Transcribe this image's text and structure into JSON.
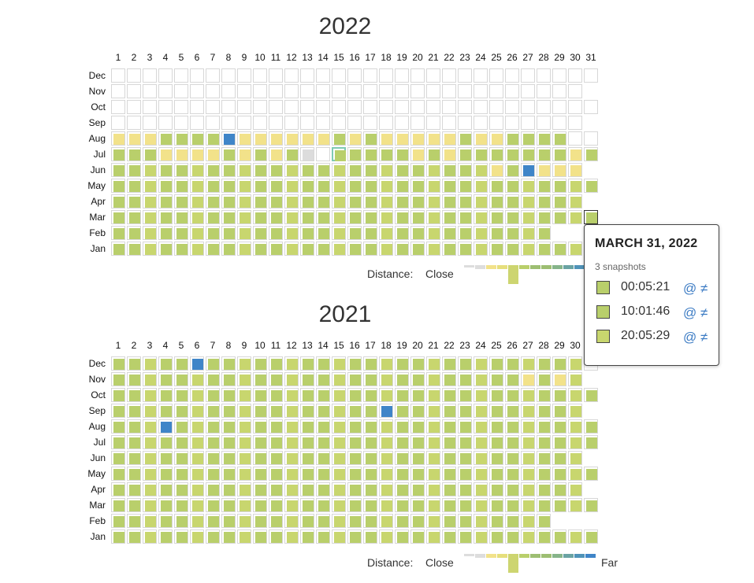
{
  "calendars": [
    {
      "year": "2022",
      "months": [
        "Dec",
        "Nov",
        "Oct",
        "Sep",
        "Aug",
        "Jul",
        "Jun",
        "May",
        "Apr",
        "Mar",
        "Feb",
        "Jan"
      ],
      "days": [
        "1",
        "2",
        "3",
        "4",
        "5",
        "6",
        "7",
        "8",
        "9",
        "10",
        "11",
        "12",
        "13",
        "14",
        "15",
        "16",
        "17",
        "18",
        "19",
        "20",
        "21",
        "22",
        "23",
        "24",
        "25",
        "26",
        "27",
        "28",
        "29",
        "30",
        "31"
      ]
    },
    {
      "year": "2021",
      "months": [
        "Dec",
        "Nov",
        "Oct",
        "Sep",
        "Aug",
        "Jul",
        "Jun",
        "May",
        "Apr",
        "Mar",
        "Feb",
        "Jan"
      ],
      "days": [
        "1",
        "2",
        "3",
        "4",
        "5",
        "6",
        "7",
        "8",
        "9",
        "10",
        "11",
        "12",
        "13",
        "14",
        "15",
        "16",
        "17",
        "18",
        "19",
        "20",
        "21",
        "22",
        "23",
        "24",
        "25",
        "26",
        "27",
        "28",
        "29",
        "30",
        "31"
      ]
    }
  ],
  "legend": {
    "distance_label": "Distance:",
    "close_label": "Close",
    "far_label": "Far"
  },
  "tooltip": {
    "date": "MARCH 31, 2022",
    "count": "3 snapshots",
    "snapshots": [
      {
        "time": "00:05:21",
        "links": "@ ≠"
      },
      {
        "time": "10:01:46",
        "links": "@ ≠"
      },
      {
        "time": "20:05:29",
        "links": "@ ≠"
      }
    ]
  },
  "colors": {
    "green": "#b9cf6b",
    "light_green": "#c8d66e",
    "yellow": "#f2e28a",
    "blue": "#3f85c8",
    "gray": "#dcdcdc",
    "selected_border": "#7fcab4",
    "link": "#3d7cc4"
  }
}
